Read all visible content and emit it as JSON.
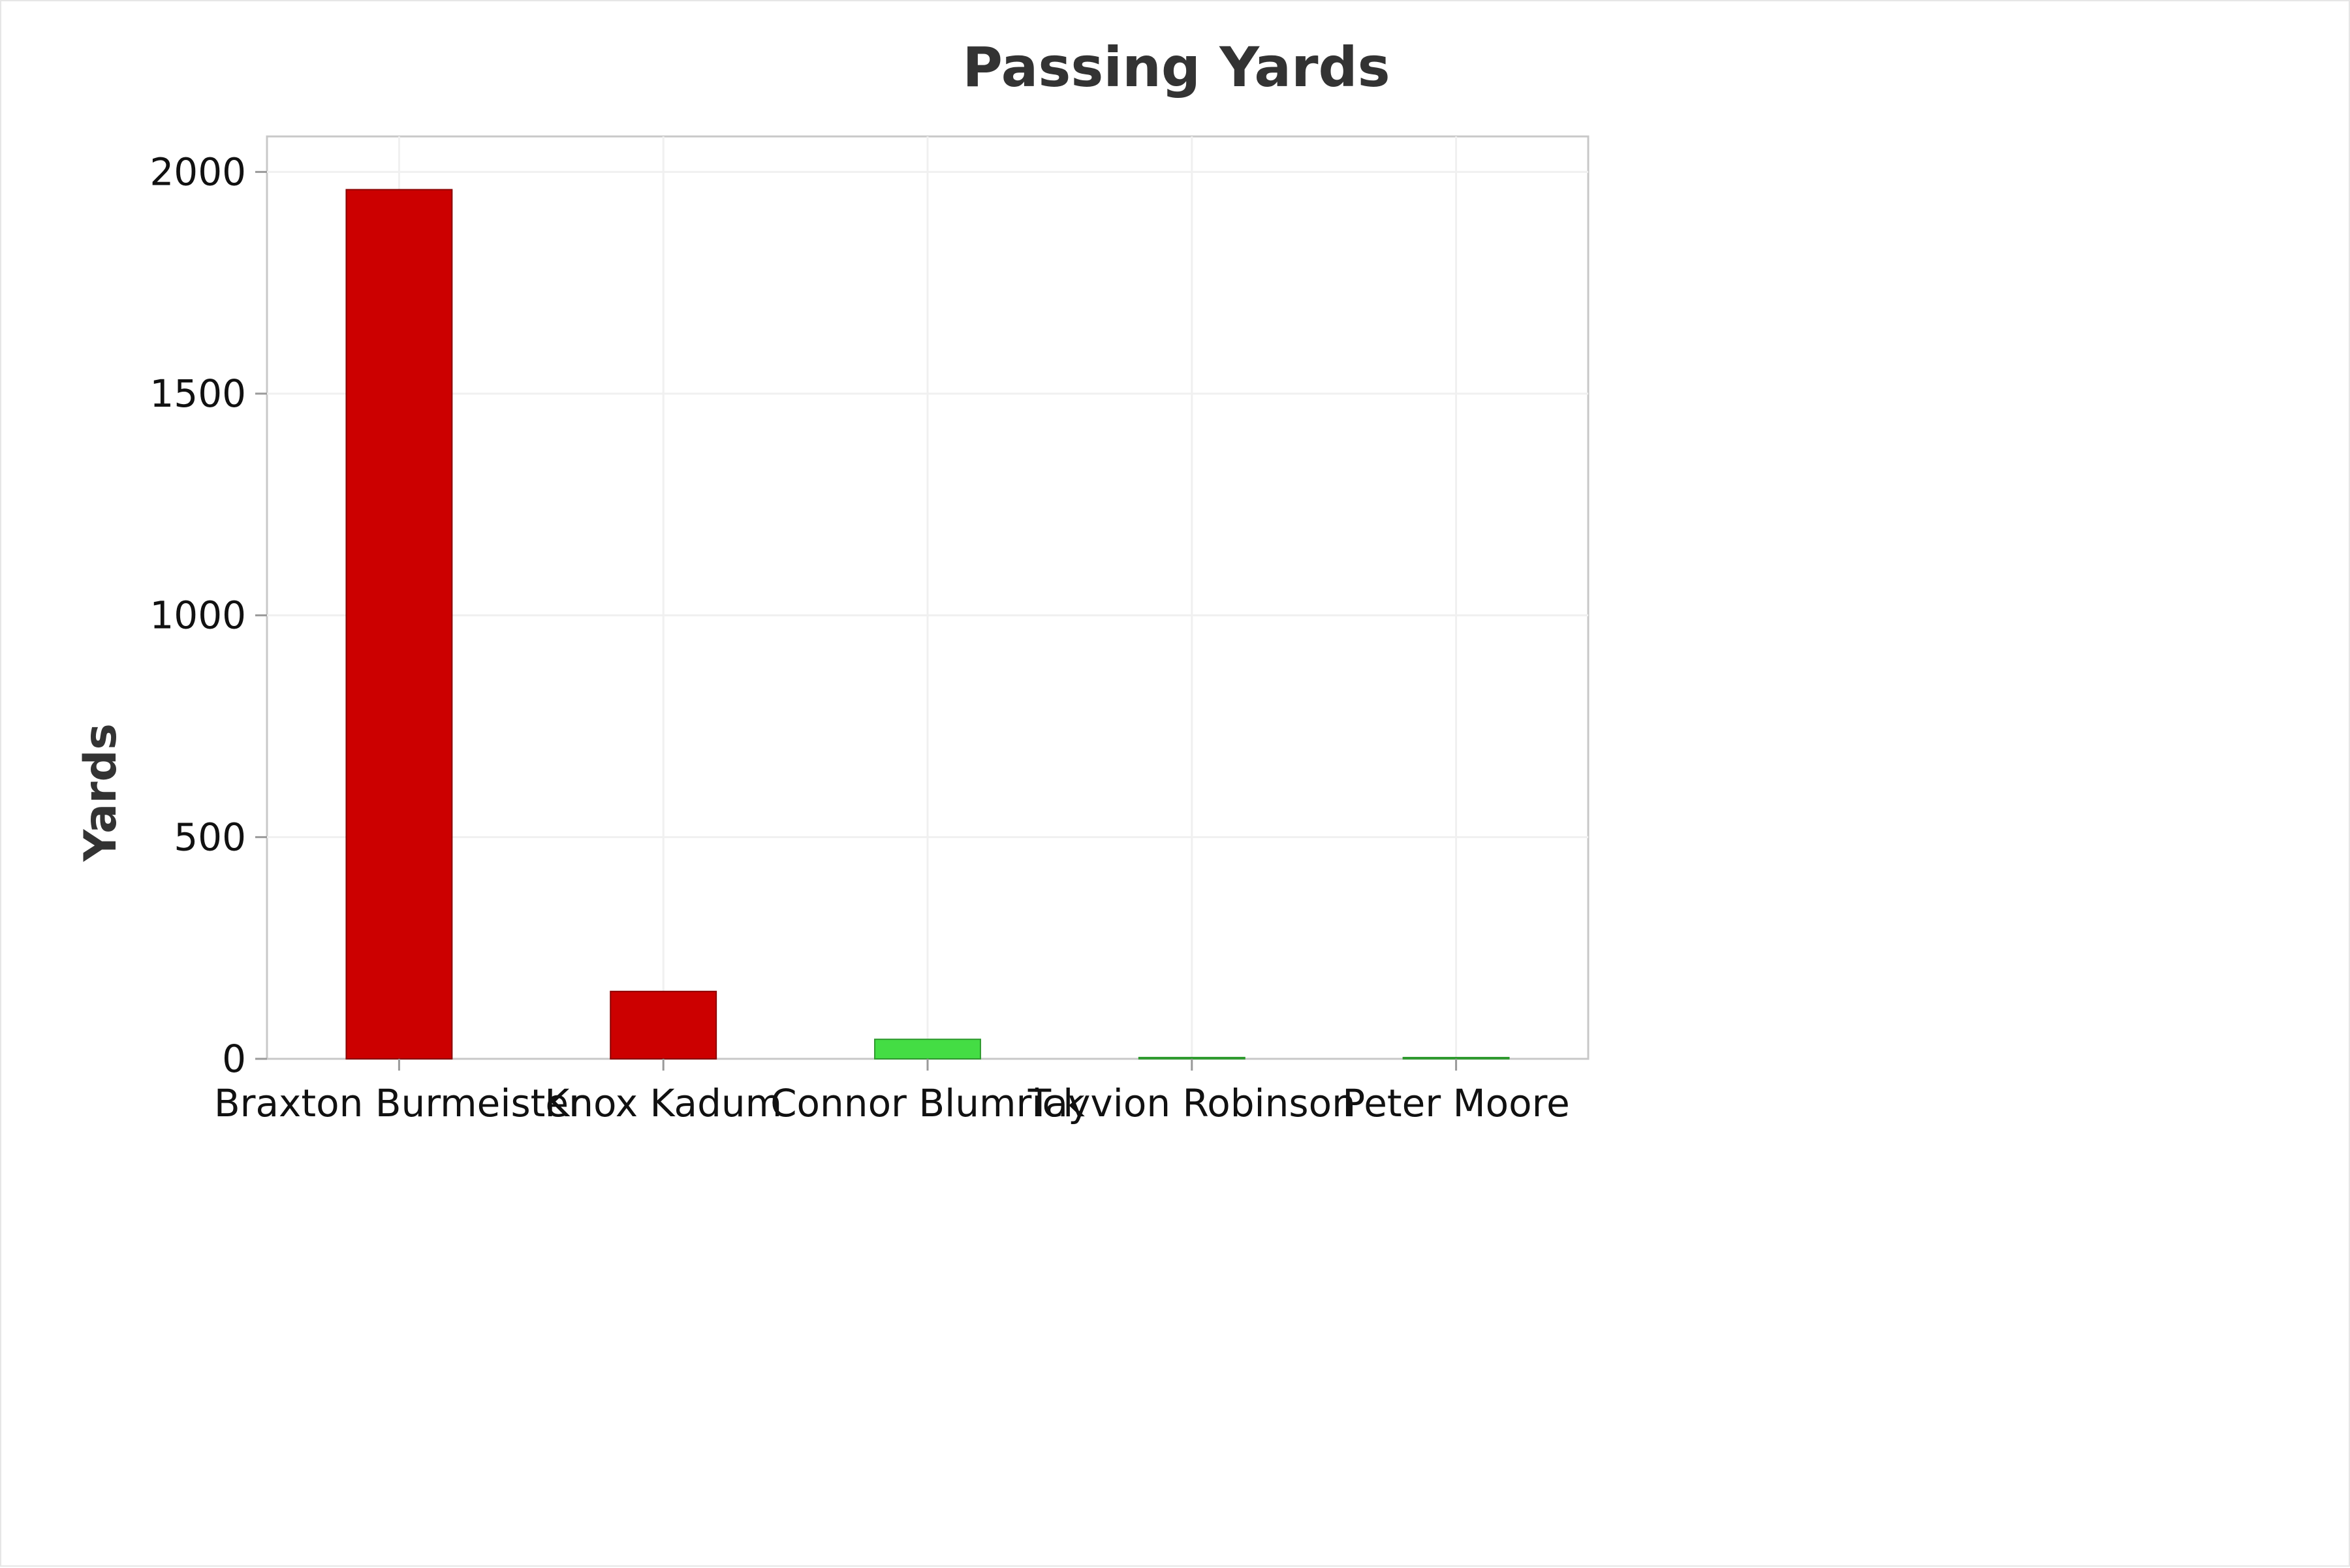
{
  "chart_data": {
    "type": "bar",
    "title": "Passing Yards",
    "xlabel": "",
    "ylabel": "Yards",
    "categories": [
      "Braxton Burmeister",
      "Knox Kadum",
      "Connor Blumrick",
      "Tayvion Robinson",
      "Peter Moore"
    ],
    "values": [
      1960,
      152,
      44,
      3,
      1
    ],
    "bar_colors": [
      "#cc0000",
      "#cc0000",
      "#44dd44",
      "#44dd44",
      "#44dd44"
    ],
    "yticks": [
      0,
      500,
      1000,
      1500,
      2000
    ],
    "ylim": [
      0,
      2080
    ],
    "grid": true,
    "legend": "none"
  }
}
